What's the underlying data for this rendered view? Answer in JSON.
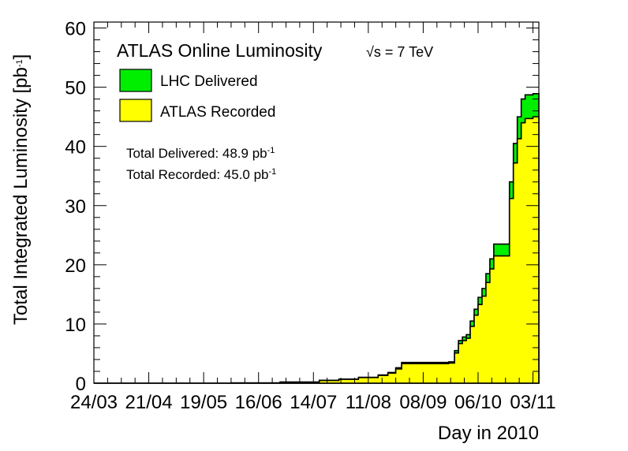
{
  "chart_data": {
    "type": "area",
    "title": "ATLAS Online Luminosity",
    "energy_label": "√s = 7 TeV",
    "xlabel": "Day in 2010",
    "ylabel_main": "Total Integrated Luminosity [pb",
    "ylabel_sup": "-1",
    "ylabel_end": "]",
    "xlim": [
      0,
      227
    ],
    "ylim": [
      0,
      61
    ],
    "x_unit": "days since 24/03/2010",
    "x_ticks": [
      {
        "day": 0,
        "label": "24/03"
      },
      {
        "day": 28,
        "label": "21/04"
      },
      {
        "day": 56,
        "label": "19/05"
      },
      {
        "day": 84,
        "label": "16/06"
      },
      {
        "day": 112,
        "label": "14/07"
      },
      {
        "day": 140,
        "label": "11/08"
      },
      {
        "day": 168,
        "label": "08/09"
      },
      {
        "day": 196,
        "label": "06/10"
      },
      {
        "day": 224,
        "label": "03/11"
      }
    ],
    "y_ticks": [
      0,
      10,
      20,
      30,
      40,
      50,
      60
    ],
    "grid": false,
    "legend_position": "top-left",
    "series": [
      {
        "name": "LHC Delivered",
        "color": "#00ee00",
        "points": [
          [
            0,
            0
          ],
          [
            70,
            0.05
          ],
          [
            95,
            0.2
          ],
          [
            115,
            0.5
          ],
          [
            125,
            0.7
          ],
          [
            135,
            1.0
          ],
          [
            145,
            1.4
          ],
          [
            150,
            1.8
          ],
          [
            154,
            2.6
          ],
          [
            157,
            3.5
          ],
          [
            162,
            3.5
          ],
          [
            166,
            3.5
          ],
          [
            170,
            3.5
          ],
          [
            175,
            3.5
          ],
          [
            181,
            3.6
          ],
          [
            184,
            5.5
          ],
          [
            186,
            7.2
          ],
          [
            188,
            7.8
          ],
          [
            190,
            8.2
          ],
          [
            192,
            10.5
          ],
          [
            194,
            12.5
          ],
          [
            196,
            14.5
          ],
          [
            198,
            16.0
          ],
          [
            200,
            18.5
          ],
          [
            202,
            21.0
          ],
          [
            204,
            23.5
          ],
          [
            210,
            23.5
          ],
          [
            212,
            34.0
          ],
          [
            214,
            40.5
          ],
          [
            216,
            45.0
          ],
          [
            218,
            48.0
          ],
          [
            220,
            48.7
          ],
          [
            224,
            48.9
          ],
          [
            227,
            48.9
          ]
        ]
      },
      {
        "name": "ATLAS Recorded",
        "color": "#ffff00",
        "points": [
          [
            0,
            0
          ],
          [
            70,
            0.05
          ],
          [
            95,
            0.18
          ],
          [
            115,
            0.45
          ],
          [
            125,
            0.65
          ],
          [
            135,
            0.95
          ],
          [
            145,
            1.3
          ],
          [
            150,
            1.7
          ],
          [
            154,
            2.4
          ],
          [
            157,
            3.3
          ],
          [
            162,
            3.3
          ],
          [
            166,
            3.3
          ],
          [
            170,
            3.3
          ],
          [
            175,
            3.3
          ],
          [
            181,
            3.4
          ],
          [
            184,
            5.1
          ],
          [
            186,
            6.7
          ],
          [
            188,
            7.2
          ],
          [
            190,
            7.6
          ],
          [
            192,
            9.6
          ],
          [
            194,
            11.5
          ],
          [
            196,
            13.3
          ],
          [
            198,
            14.7
          ],
          [
            200,
            17.0
          ],
          [
            202,
            19.3
          ],
          [
            204,
            21.5
          ],
          [
            210,
            21.5
          ],
          [
            212,
            31.2
          ],
          [
            214,
            37.2
          ],
          [
            216,
            41.3
          ],
          [
            218,
            44.0
          ],
          [
            220,
            44.7
          ],
          [
            224,
            45.0
          ],
          [
            227,
            45.0
          ]
        ]
      }
    ],
    "annotations": [
      {
        "text": "Total Delivered: 48.9 pb",
        "sup": "-1"
      },
      {
        "text": "Total Recorded: 45.0 pb",
        "sup": "-1"
      }
    ]
  }
}
